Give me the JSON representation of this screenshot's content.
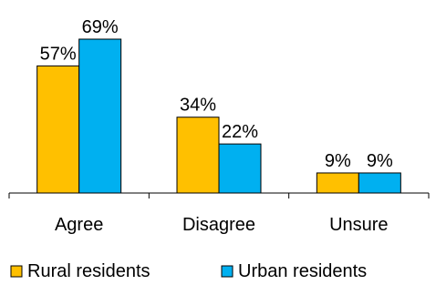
{
  "chart_data": {
    "type": "bar",
    "categories": [
      "Agree",
      "Disagree",
      "Unsure"
    ],
    "series": [
      {
        "name": "Rural residents",
        "values": [
          57,
          34,
          9
        ],
        "labels": [
          "57%",
          "34%",
          "9%"
        ],
        "color": "#FFC000"
      },
      {
        "name": "Urban residents",
        "values": [
          69,
          22,
          9
        ],
        "labels": [
          "69%",
          "22%",
          "9%"
        ],
        "color": "#00B0F0"
      }
    ],
    "value_unit": "%",
    "ylim": [
      0,
      69
    ],
    "grid": false,
    "legend_position": "bottom",
    "bar_outline_color": "#000000",
    "axis_color": "#000000"
  }
}
